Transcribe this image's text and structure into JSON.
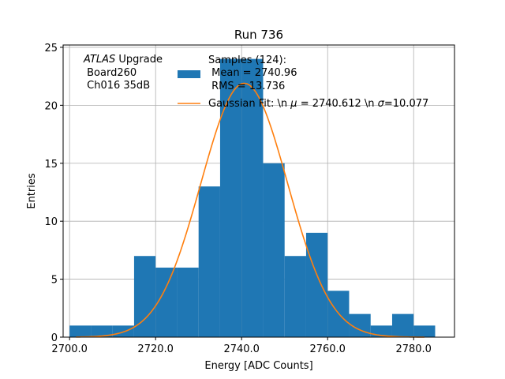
{
  "chart_data": {
    "type": "bar",
    "title": "Run 736",
    "xlabel": "Energy [ADC Counts]",
    "ylabel": "Entries",
    "xlim": [
      2698.5,
      2789.5
    ],
    "ylim": [
      0,
      25.2
    ],
    "xticks": [
      2700.0,
      2720.0,
      2740.0,
      2760.0,
      2780.0
    ],
    "xtick_labels": [
      "2700.0",
      "2720.0",
      "2740.0",
      "2760.0",
      "2780.0"
    ],
    "yticks": [
      0,
      5,
      10,
      15,
      20,
      25
    ],
    "ytick_labels": [
      "0",
      "5",
      "10",
      "15",
      "20",
      "25"
    ],
    "grid": true,
    "bar_color": "#1f77b4",
    "fit_color": "#ff7f0e",
    "bins": [
      {
        "x0": 2700.0,
        "x1": 2705.0,
        "value": 1
      },
      {
        "x0": 2705.0,
        "x1": 2710.0,
        "value": 1
      },
      {
        "x0": 2710.0,
        "x1": 2715.0,
        "value": 1
      },
      {
        "x0": 2715.0,
        "x1": 2720.0,
        "value": 7
      },
      {
        "x0": 2720.0,
        "x1": 2725.0,
        "value": 6
      },
      {
        "x0": 2725.0,
        "x1": 2730.0,
        "value": 6
      },
      {
        "x0": 2730.0,
        "x1": 2735.0,
        "value": 13
      },
      {
        "x0": 2735.0,
        "x1": 2740.0,
        "value": 24
      },
      {
        "x0": 2740.0,
        "x1": 2745.0,
        "value": 24
      },
      {
        "x0": 2745.0,
        "x1": 2750.0,
        "value": 15
      },
      {
        "x0": 2750.0,
        "x1": 2755.0,
        "value": 7
      },
      {
        "x0": 2755.0,
        "x1": 2760.0,
        "value": 9
      },
      {
        "x0": 2760.0,
        "x1": 2765.0,
        "value": 4
      },
      {
        "x0": 2765.0,
        "x1": 2770.0,
        "value": 2
      },
      {
        "x0": 2770.0,
        "x1": 2775.0,
        "value": 1
      },
      {
        "x0": 2775.0,
        "x1": 2780.0,
        "value": 2
      },
      {
        "x0": 2780.0,
        "x1": 2785.0,
        "value": 1
      }
    ],
    "gaussian_fit": {
      "mu": 2740.612,
      "sigma": 10.077,
      "amplitude": 21.9,
      "x_range": [
        2701.5,
        2782.5
      ]
    },
    "annotation": {
      "line1_italic": "ATLAS",
      "line1_rest": " Upgrade",
      "line2": " Board260",
      "line3": " Ch016 35dB"
    },
    "legend": {
      "placement": "top-right",
      "hist_label_lines": [
        "Samples (124):",
        " Mean = 2740.96",
        " RMS = 13.736"
      ],
      "fit_label_parts": [
        "Gaussian Fit: \\n ",
        "μ",
        " = 2740.612 \\n ",
        "σ",
        "=10.077"
      ]
    }
  }
}
